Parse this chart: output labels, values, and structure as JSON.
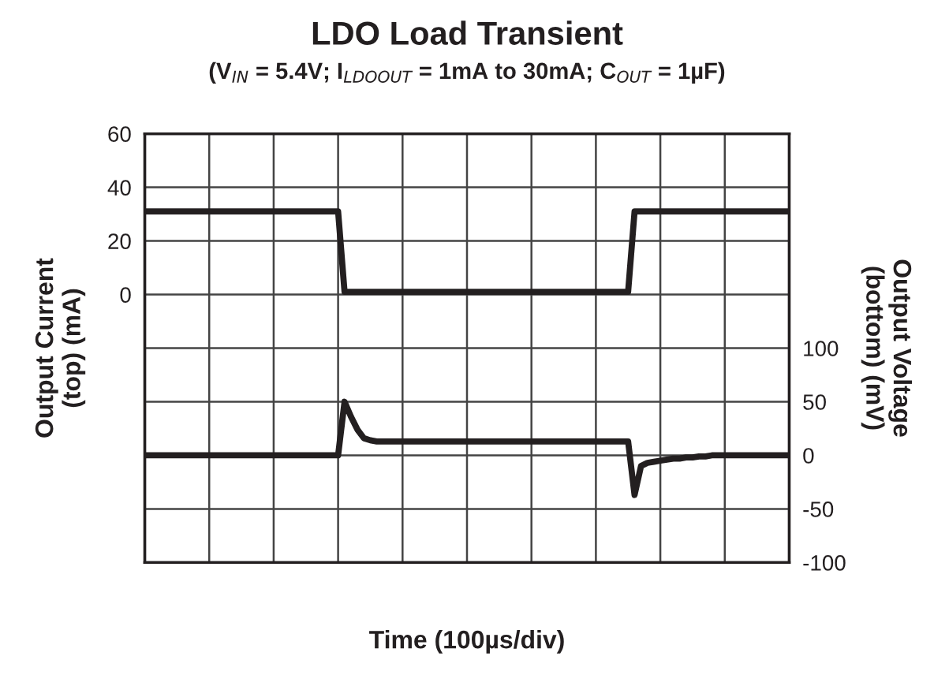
{
  "chart_data": {
    "type": "line",
    "title": "LDO Load Transient",
    "subtitle": "(V$_{IN}$ = 5.4V; I$_{LDOOUT}$ = 1mA to 30mA; C$_{OUT}$ = 1µF)",
    "xlabel": "Time (100µs/div)",
    "ylabel": "Output Current\n(top) (mA)",
    "y2label": "Output Voltage\n(bottom) (mV)",
    "categories": [
      null,
      null,
      null,
      null,
      null,
      null,
      null,
      null,
      null,
      null,
      null,
      null,
      null,
      null,
      null,
      null,
      null,
      null,
      null,
      null,
      null,
      null,
      null,
      null,
      null,
      null,
      null,
      null,
      null,
      null,
      null,
      null,
      null,
      null,
      null,
      null,
      null,
      null,
      null,
      null,
      null,
      null,
      null,
      null,
      null,
      null,
      null,
      null,
      null,
      null,
      null,
      null,
      null,
      null,
      null,
      null,
      null,
      null,
      null,
      null,
      null,
      null,
      null,
      null,
      null,
      null,
      null,
      null,
      null,
      null,
      null,
      null,
      null,
      null,
      null,
      null,
      null,
      null,
      null,
      null,
      null,
      null,
      null,
      null,
      null,
      null,
      null,
      null,
      null,
      null,
      null,
      null,
      null,
      null,
      null,
      null,
      null,
      null,
      null,
      null,
      null
    ],
    "ylim": [
      -100,
      60
    ],
    "yticks": [
      0,
      20,
      40,
      60
    ],
    "y2lim": [
      -100,
      300
    ],
    "y2ticks": [
      -100,
      -50,
      0,
      50,
      100
    ],
    "grid": true,
    "line_style": "solid",
    "marker": "none",
    "series": [
      {
        "color": "#231f20",
        "values": [
          31,
          31,
          31,
          31,
          31,
          31,
          31,
          31,
          31,
          31,
          31,
          31,
          31,
          31,
          31,
          31,
          31,
          31,
          31,
          31,
          31,
          31,
          31,
          31,
          31,
          31,
          31,
          31,
          31,
          31,
          31,
          1,
          1,
          1,
          1,
          1,
          1,
          1,
          1,
          1,
          1,
          1,
          1,
          1,
          1,
          1,
          1,
          1,
          1,
          1,
          1,
          1,
          1,
          1,
          1,
          1,
          1,
          1,
          1,
          1,
          1,
          1,
          1,
          1,
          1,
          1,
          1,
          1,
          1,
          1,
          1,
          1,
          1,
          1,
          1,
          1,
          31,
          31,
          31,
          31,
          31,
          31,
          31,
          31,
          31,
          31,
          31,
          31,
          31,
          31,
          31,
          31,
          31,
          31,
          31,
          31,
          31,
          31,
          31,
          31,
          31
        ]
      },
      {
        "color": "#231f20",
        "axis": "y2",
        "values": [
          0,
          0,
          0,
          0,
          0,
          0,
          0,
          0,
          0,
          0,
          0,
          0,
          0,
          0,
          0,
          0,
          0,
          0,
          0,
          0,
          0,
          0,
          0,
          0,
          0,
          0,
          0,
          0,
          0,
          0,
          0,
          50,
          36,
          24,
          16,
          14,
          13,
          13,
          13,
          13,
          13,
          13,
          13,
          13,
          13,
          13,
          13,
          13,
          13,
          13,
          13,
          13,
          13,
          13,
          13,
          13,
          13,
          13,
          13,
          13,
          13,
          13,
          13,
          13,
          13,
          13,
          13,
          13,
          13,
          13,
          13,
          13,
          13,
          13,
          13,
          13,
          -37,
          -10,
          -7,
          -6,
          -5,
          -4,
          -3,
          -3,
          -2,
          -2,
          -1,
          -1,
          0,
          0,
          0,
          0,
          0,
          0,
          0,
          0,
          0,
          0,
          0,
          0,
          0
        ]
      }
    ]
  }
}
